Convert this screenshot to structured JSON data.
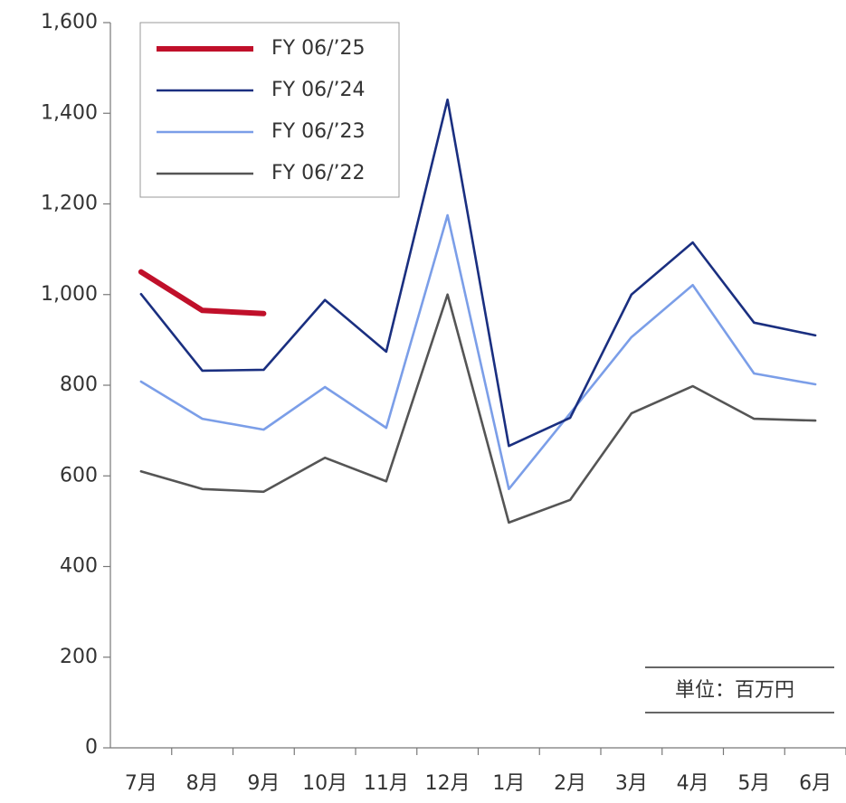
{
  "chart_data": {
    "type": "line",
    "categories": [
      "7月",
      "8月",
      "9月",
      "10月",
      "11月",
      "12月",
      "1月",
      "2月",
      "3月",
      "4月",
      "5月",
      "6月"
    ],
    "series": [
      {
        "name": "FY 06/’25",
        "color": "#c0102a",
        "values": [
          1050,
          965,
          958,
          null,
          null,
          null,
          null,
          null,
          null,
          null,
          null,
          null
        ]
      },
      {
        "name": "FY 06/’24",
        "color": "#1a2f80",
        "values": [
          1001,
          832,
          834,
          988,
          874,
          1430,
          666,
          728,
          1000,
          1115,
          938,
          910
        ]
      },
      {
        "name": "FY 06/’23",
        "color": "#7b9ee8",
        "values": [
          808,
          726,
          702,
          796,
          706,
          1175,
          571,
          738,
          906,
          1021,
          826,
          802
        ]
      },
      {
        "name": "FY 06/’22",
        "color": "#555555",
        "values": [
          610,
          571,
          565,
          640,
          588,
          1000,
          497,
          547,
          738,
          798,
          726,
          722
        ]
      }
    ],
    "ylim": [
      0,
      1600
    ],
    "yticks": [
      0,
      200,
      400,
      600,
      800,
      {
        "value": 1000,
        "label": "1,000"
      },
      {
        "value": 1200,
        "label": "1,200"
      },
      {
        "value": 1400,
        "label": "1,400"
      },
      {
        "value": 1600,
        "label": "1,600"
      }
    ],
    "legend": "top-left",
    "annotation": "単位：百万円"
  }
}
